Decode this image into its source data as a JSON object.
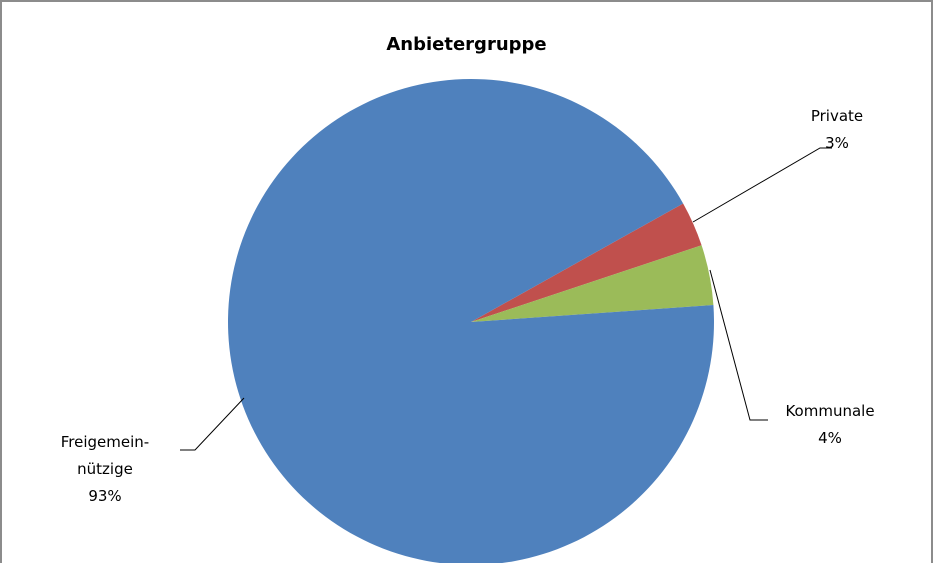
{
  "chart_data": {
    "type": "pie",
    "title": "Anbietergruppe",
    "categories": [
      "Private",
      "Kommunale",
      "Freigemein-nützige"
    ],
    "values": [
      3,
      4,
      93
    ],
    "value_labels": [
      "3%",
      "4%",
      "93%"
    ],
    "colors": [
      "#c0504d",
      "#9bbb59",
      "#4f81bd"
    ]
  }
}
